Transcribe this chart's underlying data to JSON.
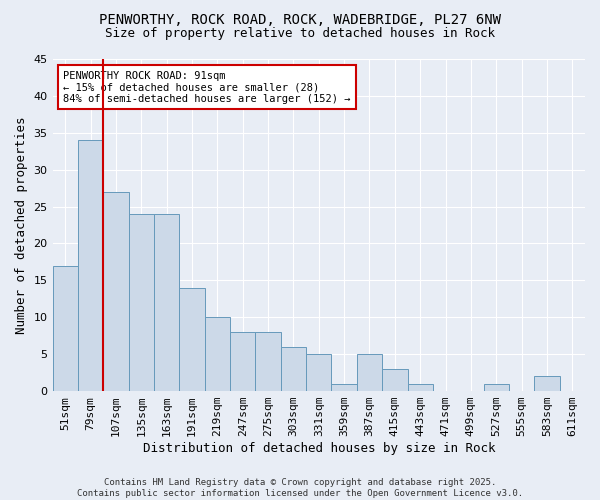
{
  "title1": "PENWORTHY, ROCK ROAD, ROCK, WADEBRIDGE, PL27 6NW",
  "title2": "Size of property relative to detached houses in Rock",
  "xlabel": "Distribution of detached houses by size in Rock",
  "ylabel": "Number of detached properties",
  "bins": [
    "51sqm",
    "79sqm",
    "107sqm",
    "135sqm",
    "163sqm",
    "191sqm",
    "219sqm",
    "247sqm",
    "275sqm",
    "303sqm",
    "331sqm",
    "359sqm",
    "387sqm",
    "415sqm",
    "443sqm",
    "471sqm",
    "499sqm",
    "527sqm",
    "555sqm",
    "583sqm",
    "611sqm"
  ],
  "values": [
    17,
    34,
    27,
    24,
    24,
    14,
    10,
    8,
    8,
    6,
    5,
    1,
    5,
    3,
    1,
    0,
    0,
    1,
    0,
    2,
    0
  ],
  "bar_color": "#ccd9e8",
  "bar_edge_color": "#6699bb",
  "bg_color": "#e8edf5",
  "grid_color": "#ffffff",
  "vline_color": "#cc0000",
  "annotation_text": "PENWORTHY ROCK ROAD: 91sqm\n← 15% of detached houses are smaller (28)\n84% of semi-detached houses are larger (152) →",
  "annotation_box_color": "#ffffff",
  "annotation_box_edge": "#cc0000",
  "ylim": [
    0,
    45
  ],
  "yticks": [
    0,
    5,
    10,
    15,
    20,
    25,
    30,
    35,
    40,
    45
  ],
  "footer": "Contains HM Land Registry data © Crown copyright and database right 2025.\nContains public sector information licensed under the Open Government Licence v3.0."
}
